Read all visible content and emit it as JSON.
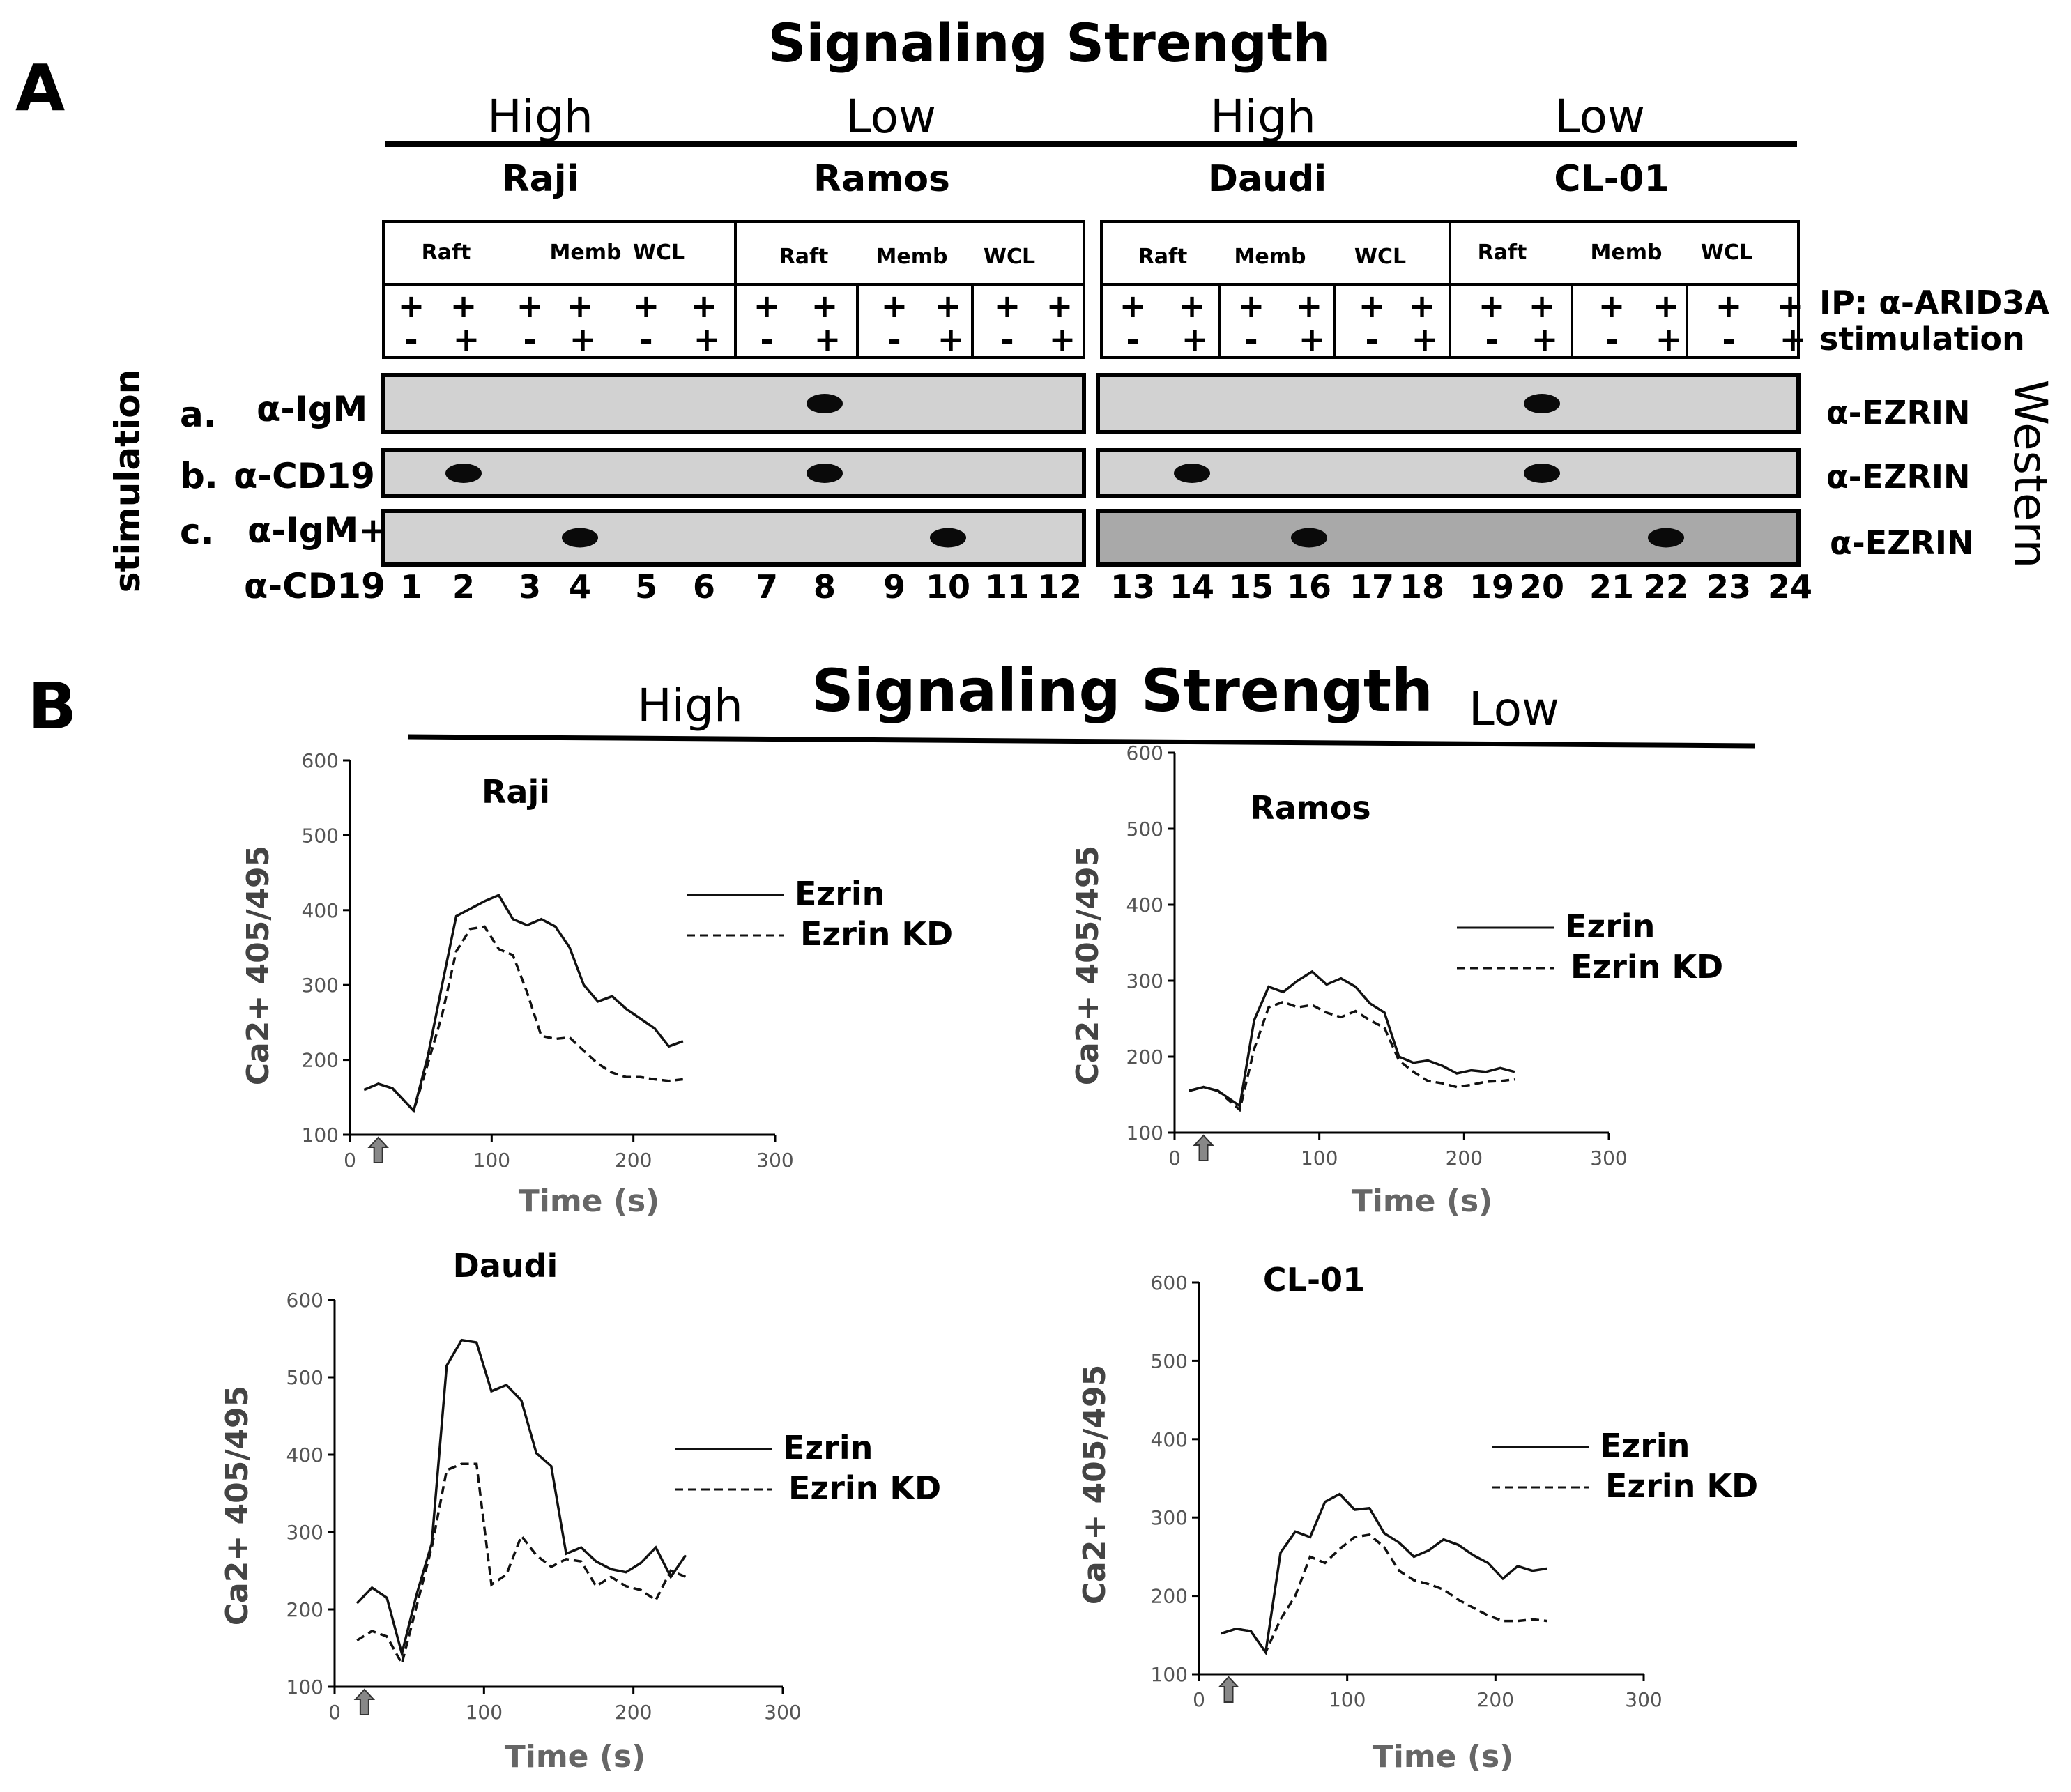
{
  "panel_a": {
    "letter": "A",
    "title": "Signaling Strength",
    "strengths": [
      "High",
      "Low",
      "High",
      "Low"
    ],
    "cell_lines": [
      "Raji",
      "Ramos",
      "Daudi",
      "CL-01"
    ],
    "fractions": [
      "Raft",
      "Memb",
      "WCL"
    ],
    "ip_label": "IP:  α-ARID3A",
    "stim_label": "stimulation",
    "plus": "+",
    "minus": "-",
    "side_label": "stimulation",
    "western_label": "Western",
    "rows": [
      {
        "letter": "a.",
        "label": "α-IgM",
        "ab": "α-EZRIN",
        "bands": [
          8,
          20
        ]
      },
      {
        "letter": "b.",
        "label": "α-CD19",
        "ab": "α-EZRIN",
        "bands": [
          2,
          8,
          14,
          20
        ]
      },
      {
        "letter": "c.",
        "label": "α-IgM+",
        "ab": "α-EZRIN",
        "bands": [
          4,
          10,
          16,
          22
        ]
      }
    ],
    "row_c_label2": "α-CD19",
    "lanes": [
      "1",
      "2",
      "3",
      "4",
      "5",
      "6",
      "7",
      "8",
      "9",
      "10",
      "11",
      "12",
      "13",
      "14",
      "15",
      "16",
      "17",
      "18",
      "19",
      "20",
      "21",
      "22",
      "23",
      "24"
    ]
  },
  "panel_b": {
    "letter": "B",
    "title": "Signaling Strength",
    "high_label": "High",
    "low_label": "Low"
  },
  "chart_data": [
    {
      "type": "line",
      "title": "Raji",
      "xlabel": "Time (s)",
      "ylabel": "Ca2+ 405/495",
      "xlim": [
        0,
        300
      ],
      "ylim": [
        100,
        600
      ],
      "xticks": [
        "0",
        "100",
        "200",
        "300"
      ],
      "yticks": [
        "100",
        "200",
        "300",
        "400",
        "500",
        "600"
      ],
      "series": [
        {
          "name": "Ezrin",
          "style": "solid",
          "x": [
            10,
            20,
            30,
            45,
            55,
            65,
            75,
            85,
            95,
            105,
            115,
            125,
            135,
            145,
            155,
            165,
            175,
            185,
            195,
            205,
            215,
            225,
            235
          ],
          "y": [
            160,
            168,
            162,
            132,
            205,
            300,
            392,
            402,
            412,
            420,
            388,
            380,
            388,
            378,
            350,
            300,
            278,
            285,
            268,
            255,
            242,
            218,
            225
          ]
        },
        {
          "name": "Ezrin KD",
          "style": "dashed",
          "x": [
            10,
            20,
            30,
            45,
            55,
            65,
            75,
            85,
            95,
            105,
            115,
            125,
            135,
            145,
            155,
            165,
            175,
            185,
            195,
            205,
            215,
            225,
            235
          ],
          "y": [
            160,
            168,
            162,
            132,
            195,
            260,
            345,
            375,
            378,
            348,
            340,
            290,
            232,
            228,
            230,
            212,
            195,
            183,
            177,
            177,
            174,
            172,
            174
          ]
        }
      ]
    },
    {
      "type": "line",
      "title": "Ramos",
      "xlabel": "Time (s)",
      "ylabel": "Ca2+ 405/495",
      "xlim": [
        0,
        300
      ],
      "ylim": [
        100,
        600
      ],
      "xticks": [
        "0",
        "100",
        "200",
        "300"
      ],
      "yticks": [
        "100",
        "200",
        "300",
        "400",
        "500",
        "600"
      ],
      "series": [
        {
          "name": "Ezrin",
          "style": "solid",
          "x": [
            10,
            20,
            30,
            45,
            55,
            65,
            75,
            85,
            95,
            105,
            115,
            125,
            135,
            145,
            155,
            165,
            175,
            185,
            195,
            205,
            215,
            225,
            235
          ],
          "y": [
            155,
            160,
            155,
            135,
            248,
            292,
            285,
            300,
            312,
            295,
            303,
            292,
            270,
            258,
            200,
            192,
            195,
            188,
            178,
            182,
            180,
            185,
            180
          ]
        },
        {
          "name": "Ezrin KD",
          "style": "dashed",
          "x": [
            10,
            20,
            30,
            45,
            55,
            65,
            75,
            85,
            95,
            105,
            115,
            125,
            135,
            145,
            155,
            165,
            175,
            185,
            195,
            205,
            215,
            225,
            235
          ],
          "y": [
            155,
            160,
            155,
            130,
            210,
            265,
            272,
            265,
            268,
            258,
            252,
            260,
            248,
            238,
            195,
            180,
            168,
            165,
            160,
            163,
            167,
            168,
            170
          ]
        }
      ]
    },
    {
      "type": "line",
      "title": "Daudi",
      "xlabel": "Time (s)",
      "ylabel": "Ca2+ 405/495",
      "xlim": [
        0,
        300
      ],
      "ylim": [
        100,
        600
      ],
      "xticks": [
        "0",
        "100",
        "200",
        "300"
      ],
      "yticks": [
        "100",
        "200",
        "300",
        "400",
        "500",
        "600"
      ],
      "series": [
        {
          "name": "Ezrin",
          "style": "solid",
          "x": [
            15,
            25,
            35,
            45,
            55,
            65,
            75,
            85,
            95,
            105,
            115,
            125,
            135,
            145,
            155,
            165,
            175,
            185,
            195,
            205,
            215,
            225,
            235
          ],
          "y": [
            208,
            228,
            215,
            143,
            220,
            285,
            515,
            548,
            545,
            482,
            490,
            470,
            402,
            385,
            272,
            280,
            262,
            252,
            248,
            260,
            280,
            242,
            270
          ]
        },
        {
          "name": "Ezrin KD",
          "style": "dashed",
          "x": [
            15,
            25,
            35,
            45,
            55,
            65,
            75,
            85,
            95,
            105,
            115,
            125,
            135,
            145,
            155,
            165,
            175,
            185,
            195,
            205,
            215,
            225,
            235
          ],
          "y": [
            160,
            172,
            165,
            130,
            205,
            280,
            380,
            388,
            388,
            232,
            245,
            295,
            270,
            255,
            265,
            262,
            230,
            242,
            230,
            225,
            212,
            250,
            242
          ]
        }
      ]
    },
    {
      "type": "line",
      "title": "CL-01",
      "xlabel": "Time (s)",
      "ylabel": "Ca2+ 405/495",
      "xlim": [
        0,
        300
      ],
      "ylim": [
        100,
        600
      ],
      "xticks": [
        "0",
        "100",
        "200",
        "300"
      ],
      "yticks": [
        "100",
        "200",
        "300",
        "400",
        "500",
        "600"
      ],
      "series": [
        {
          "name": "Ezrin",
          "style": "solid",
          "x": [
            15,
            25,
            35,
            45,
            55,
            65,
            75,
            85,
            95,
            105,
            115,
            125,
            135,
            145,
            155,
            165,
            175,
            185,
            195,
            205,
            215,
            225,
            235
          ],
          "y": [
            152,
            158,
            155,
            128,
            255,
            282,
            275,
            320,
            330,
            310,
            312,
            280,
            268,
            250,
            258,
            272,
            265,
            252,
            242,
            222,
            238,
            232,
            235
          ]
        },
        {
          "name": "Ezrin KD",
          "style": "dashed",
          "x": [
            15,
            25,
            35,
            45,
            55,
            65,
            75,
            85,
            95,
            105,
            115,
            125,
            135,
            145,
            155,
            165,
            175,
            185,
            195,
            205,
            215,
            225,
            235
          ],
          "y": [
            152,
            158,
            155,
            128,
            170,
            200,
            250,
            242,
            260,
            275,
            278,
            262,
            232,
            220,
            215,
            208,
            195,
            185,
            175,
            168,
            168,
            170,
            168
          ]
        }
      ]
    }
  ]
}
